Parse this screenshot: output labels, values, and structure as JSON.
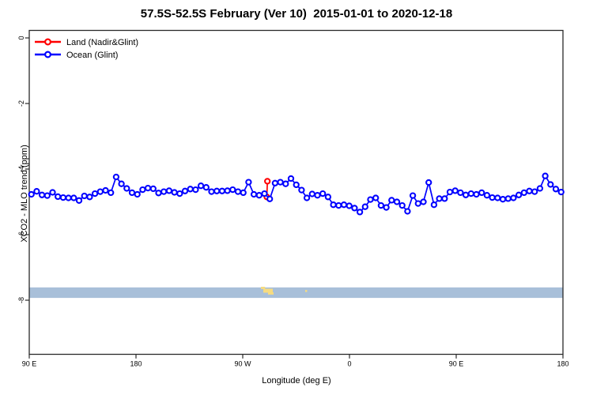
{
  "figure": {
    "title": "57.5S-52.5S February (Ver 10)  2015-01-01 to 2020-12-18"
  },
  "chart_data": {
    "type": "line",
    "title": "57.5S-52.5S February (Ver 10)  2015-01-01 to 2020-12-18",
    "xlabel": "Longitude (deg E)",
    "ylabel": "XCO2 - MLO trend (ppm)",
    "xlim": [
      90,
      540
    ],
    "ylim": [
      -9.65,
      0.23
    ],
    "grid": false,
    "legend_position": "top-left",
    "x_ticks": [
      {
        "lon": 90,
        "label": "90 E"
      },
      {
        "lon": 180,
        "label": "180"
      },
      {
        "lon": 270,
        "label": "90 W"
      },
      {
        "lon": 360,
        "label": "0"
      },
      {
        "lon": 450,
        "label": "90 E"
      },
      {
        "lon": 540,
        "label": "180"
      }
    ],
    "y_ticks": [
      {
        "value": 0,
        "label": "0"
      },
      {
        "value": -2,
        "label": "-2"
      },
      {
        "value": -4,
        "label": "-4"
      },
      {
        "value": -6,
        "label": "-6"
      },
      {
        "value": -8,
        "label": "-8"
      }
    ],
    "series": [
      {
        "name": "Land (Nadir&Glint)",
        "color": "#ff0000",
        "points": [
          [
            290.3,
            -4.85
          ],
          [
            290.8,
            -4.37
          ]
        ]
      },
      {
        "name": "Ocean (Glint)",
        "color": "#0000ff",
        "lon_start": 91.8,
        "lon_step": 4.4667,
        "values": [
          -4.77,
          -4.68,
          -4.79,
          -4.81,
          -4.71,
          -4.84,
          -4.87,
          -4.88,
          -4.88,
          -4.96,
          -4.82,
          -4.85,
          -4.75,
          -4.69,
          -4.65,
          -4.72,
          -4.24,
          -4.45,
          -4.59,
          -4.72,
          -4.77,
          -4.63,
          -4.58,
          -4.6,
          -4.73,
          -4.69,
          -4.66,
          -4.71,
          -4.75,
          -4.67,
          -4.61,
          -4.63,
          -4.51,
          -4.56,
          -4.69,
          -4.67,
          -4.67,
          -4.66,
          -4.63,
          -4.69,
          -4.72,
          -4.4,
          -4.77,
          -4.8,
          -4.75,
          -4.91,
          -4.43,
          -4.4,
          -4.45,
          -4.29,
          -4.48,
          -4.64,
          -4.88,
          -4.76,
          -4.8,
          -4.75,
          -4.85,
          -5.09,
          -5.11,
          -5.09,
          -5.12,
          -5.19,
          -5.31,
          -5.15,
          -4.93,
          -4.88,
          -5.11,
          -5.17,
          -4.95,
          -5.0,
          -5.11,
          -5.29,
          -4.81,
          -5.05,
          -5.0,
          -4.41,
          -5.09,
          -4.9,
          -4.9,
          -4.7,
          -4.66,
          -4.72,
          -4.79,
          -4.75,
          -4.77,
          -4.72,
          -4.8,
          -4.87,
          -4.88,
          -4.92,
          -4.9,
          -4.88,
          -4.79,
          -4.72,
          -4.67,
          -4.69,
          -4.59,
          -4.21,
          -4.47,
          -4.61,
          -4.7
        ]
      }
    ],
    "map_band": {
      "description": "world map strip at 57.5S-52.5S latitude band",
      "ocean_color": "#a8bfd9",
      "land_color": "#f6db80",
      "value_top": -7.61,
      "value_bottom": -7.93,
      "land_patches": [
        {
          "name": "patagonia-nw",
          "lon_min": 285.3,
          "lon_max": 288.8,
          "v_top": -7.59,
          "v_bottom": -7.66
        },
        {
          "name": "patagonia-main",
          "lon_min": 287.3,
          "lon_max": 295.3,
          "v_top": -7.65,
          "v_bottom": -7.77
        },
        {
          "name": "tierra-del-fuego",
          "lon_min": 291.3,
          "lon_max": 296.0,
          "v_top": -7.76,
          "v_bottom": -7.83
        },
        {
          "name": "south-georgia",
          "lon_min": 322.7,
          "lon_max": 324.3,
          "v_top": -7.69,
          "v_bottom": -7.75
        }
      ]
    }
  }
}
